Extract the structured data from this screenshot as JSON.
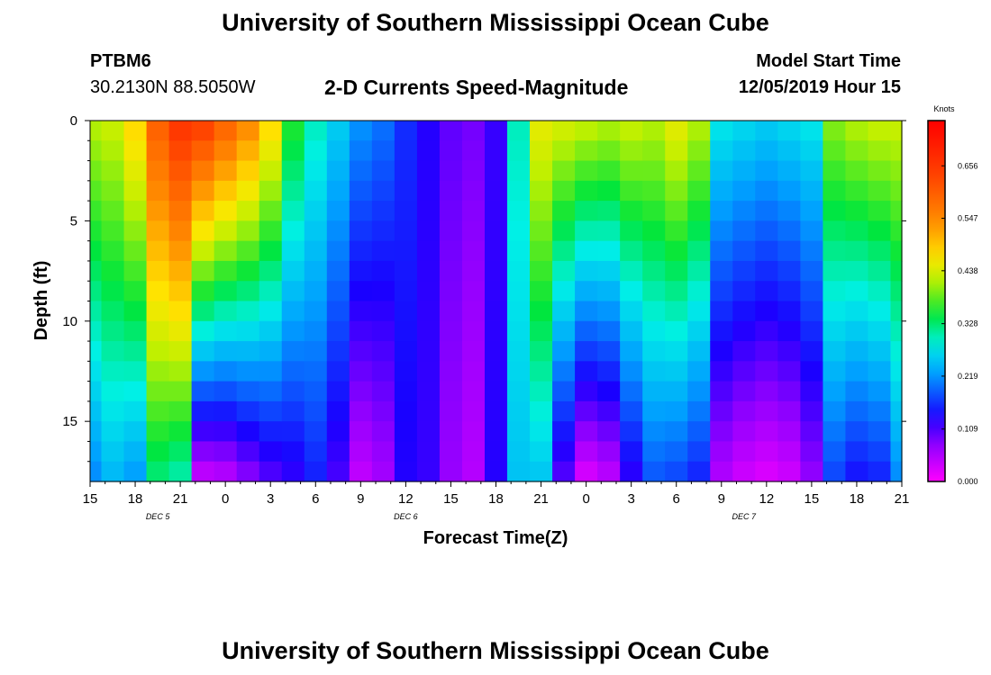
{
  "header": {
    "title": "University of Southern Mississippi Ocean Cube",
    "station_id": "PTBM6",
    "station_coords": "30.2130N 88.5050W",
    "subtitle": "2-D Currents Speed-Magnitude",
    "model_start_label": "Model Start Time",
    "model_start_value": "12/05/2019 Hour 15"
  },
  "footer": {
    "title": "University of Southern Mississippi Ocean Cube"
  },
  "chart_data": {
    "type": "heatmap",
    "title": "2-D Currents Speed-Magnitude",
    "xlabel": "Forecast Time(Z)",
    "ylabel": "Depth (ft)",
    "x_range_hours": [
      0,
      54
    ],
    "y_range_ft": [
      0,
      18
    ],
    "x_ticks": [
      {
        "h": 0,
        "label": "15"
      },
      {
        "h": 3,
        "label": "18"
      },
      {
        "h": 6,
        "label": "21"
      },
      {
        "h": 9,
        "label": "0"
      },
      {
        "h": 12,
        "label": "3"
      },
      {
        "h": 15,
        "label": "6"
      },
      {
        "h": 18,
        "label": "9"
      },
      {
        "h": 21,
        "label": "12"
      },
      {
        "h": 24,
        "label": "15"
      },
      {
        "h": 27,
        "label": "18"
      },
      {
        "h": 30,
        "label": "21"
      },
      {
        "h": 33,
        "label": "0"
      },
      {
        "h": 36,
        "label": "3"
      },
      {
        "h": 39,
        "label": "6"
      },
      {
        "h": 42,
        "label": "9"
      },
      {
        "h": 45,
        "label": "12"
      },
      {
        "h": 48,
        "label": "15"
      },
      {
        "h": 51,
        "label": "18"
      },
      {
        "h": 54,
        "label": "21"
      }
    ],
    "y_ticks": [
      {
        "v": 0,
        "label": "0"
      },
      {
        "v": 5,
        "label": "5"
      },
      {
        "v": 10,
        "label": "10"
      },
      {
        "v": 15,
        "label": "15"
      }
    ],
    "date_labels": [
      {
        "h": 4.5,
        "label": "DEC 5"
      },
      {
        "h": 21,
        "label": "DEC 6"
      },
      {
        "h": 43.5,
        "label": "DEC 7"
      }
    ],
    "colorbar": {
      "unit": "Knots",
      "min": 0.0,
      "max": 0.75,
      "ticks": [
        "0.000",
        "0.109",
        "0.219",
        "0.328",
        "0.438",
        "0.547",
        "0.656"
      ],
      "tick_values": [
        0.0,
        0.109,
        0.219,
        0.328,
        0.438,
        0.547,
        0.656
      ]
    },
    "depth_levels_ft": [
      0.5,
      1.5,
      2.5,
      3.5,
      4.5,
      5.5,
      6.5,
      7.5,
      8.5,
      9.5,
      10.5,
      11.5,
      12.5,
      13.5,
      14.5,
      15.5,
      16.5,
      17.5
    ],
    "speed_profiles": [
      {
        "h": 0,
        "top": 0.42,
        "bottom": 0.21
      },
      {
        "h": 1.5,
        "top": 0.43,
        "bottom": 0.24
      },
      {
        "h": 3,
        "top": 0.48,
        "bottom": 0.22
      },
      {
        "h": 4.5,
        "top": 0.6,
        "bottom": 0.32
      },
      {
        "h": 6,
        "top": 0.66,
        "bottom": 0.3
      },
      {
        "h": 7.5,
        "top": 0.65,
        "bottom": 0.03
      },
      {
        "h": 9,
        "top": 0.6,
        "bottom": 0.04
      },
      {
        "h": 10.5,
        "top": 0.55,
        "bottom": 0.07
      },
      {
        "h": 12,
        "top": 0.48,
        "bottom": 0.1
      },
      {
        "h": 13.5,
        "top": 0.36,
        "bottom": 0.12
      },
      {
        "h": 15,
        "top": 0.3,
        "bottom": 0.15
      },
      {
        "h": 16.5,
        "top": 0.26,
        "bottom": 0.11
      },
      {
        "h": 18,
        "top": 0.22,
        "bottom": 0.04
      },
      {
        "h": 19.5,
        "top": 0.2,
        "bottom": 0.06
      },
      {
        "h": 21,
        "top": 0.16,
        "bottom": 0.13
      },
      {
        "h": 22.5,
        "top": 0.13,
        "bottom": 0.12
      },
      {
        "h": 24,
        "top": 0.1,
        "bottom": 0.07
      },
      {
        "h": 25.5,
        "top": 0.09,
        "bottom": 0.05
      },
      {
        "h": 27,
        "top": 0.12,
        "bottom": 0.13
      },
      {
        "h": 28.5,
        "top": 0.3,
        "bottom": 0.25
      },
      {
        "h": 30,
        "top": 0.45,
        "bottom": 0.25
      },
      {
        "h": 31.5,
        "top": 0.44,
        "bottom": 0.1
      },
      {
        "h": 33,
        "top": 0.43,
        "bottom": 0.02
      },
      {
        "h": 34.5,
        "top": 0.42,
        "bottom": 0.04
      },
      {
        "h": 36,
        "top": 0.43,
        "bottom": 0.12
      },
      {
        "h": 37.5,
        "top": 0.42,
        "bottom": 0.18
      },
      {
        "h": 39,
        "top": 0.45,
        "bottom": 0.17
      },
      {
        "h": 40.5,
        "top": 0.42,
        "bottom": 0.15
      },
      {
        "h": 42,
        "top": 0.28,
        "bottom": 0.05
      },
      {
        "h": 43.5,
        "top": 0.27,
        "bottom": 0.03
      },
      {
        "h": 45,
        "top": 0.26,
        "bottom": 0.02
      },
      {
        "h": 46.5,
        "top": 0.27,
        "bottom": 0.03
      },
      {
        "h": 48,
        "top": 0.28,
        "bottom": 0.07
      },
      {
        "h": 49.5,
        "top": 0.4,
        "bottom": 0.17
      },
      {
        "h": 51,
        "top": 0.42,
        "bottom": 0.14
      },
      {
        "h": 52.5,
        "top": 0.43,
        "bottom": 0.15
      },
      {
        "h": 54,
        "top": 0.43,
        "bottom": 0.21
      }
    ]
  }
}
